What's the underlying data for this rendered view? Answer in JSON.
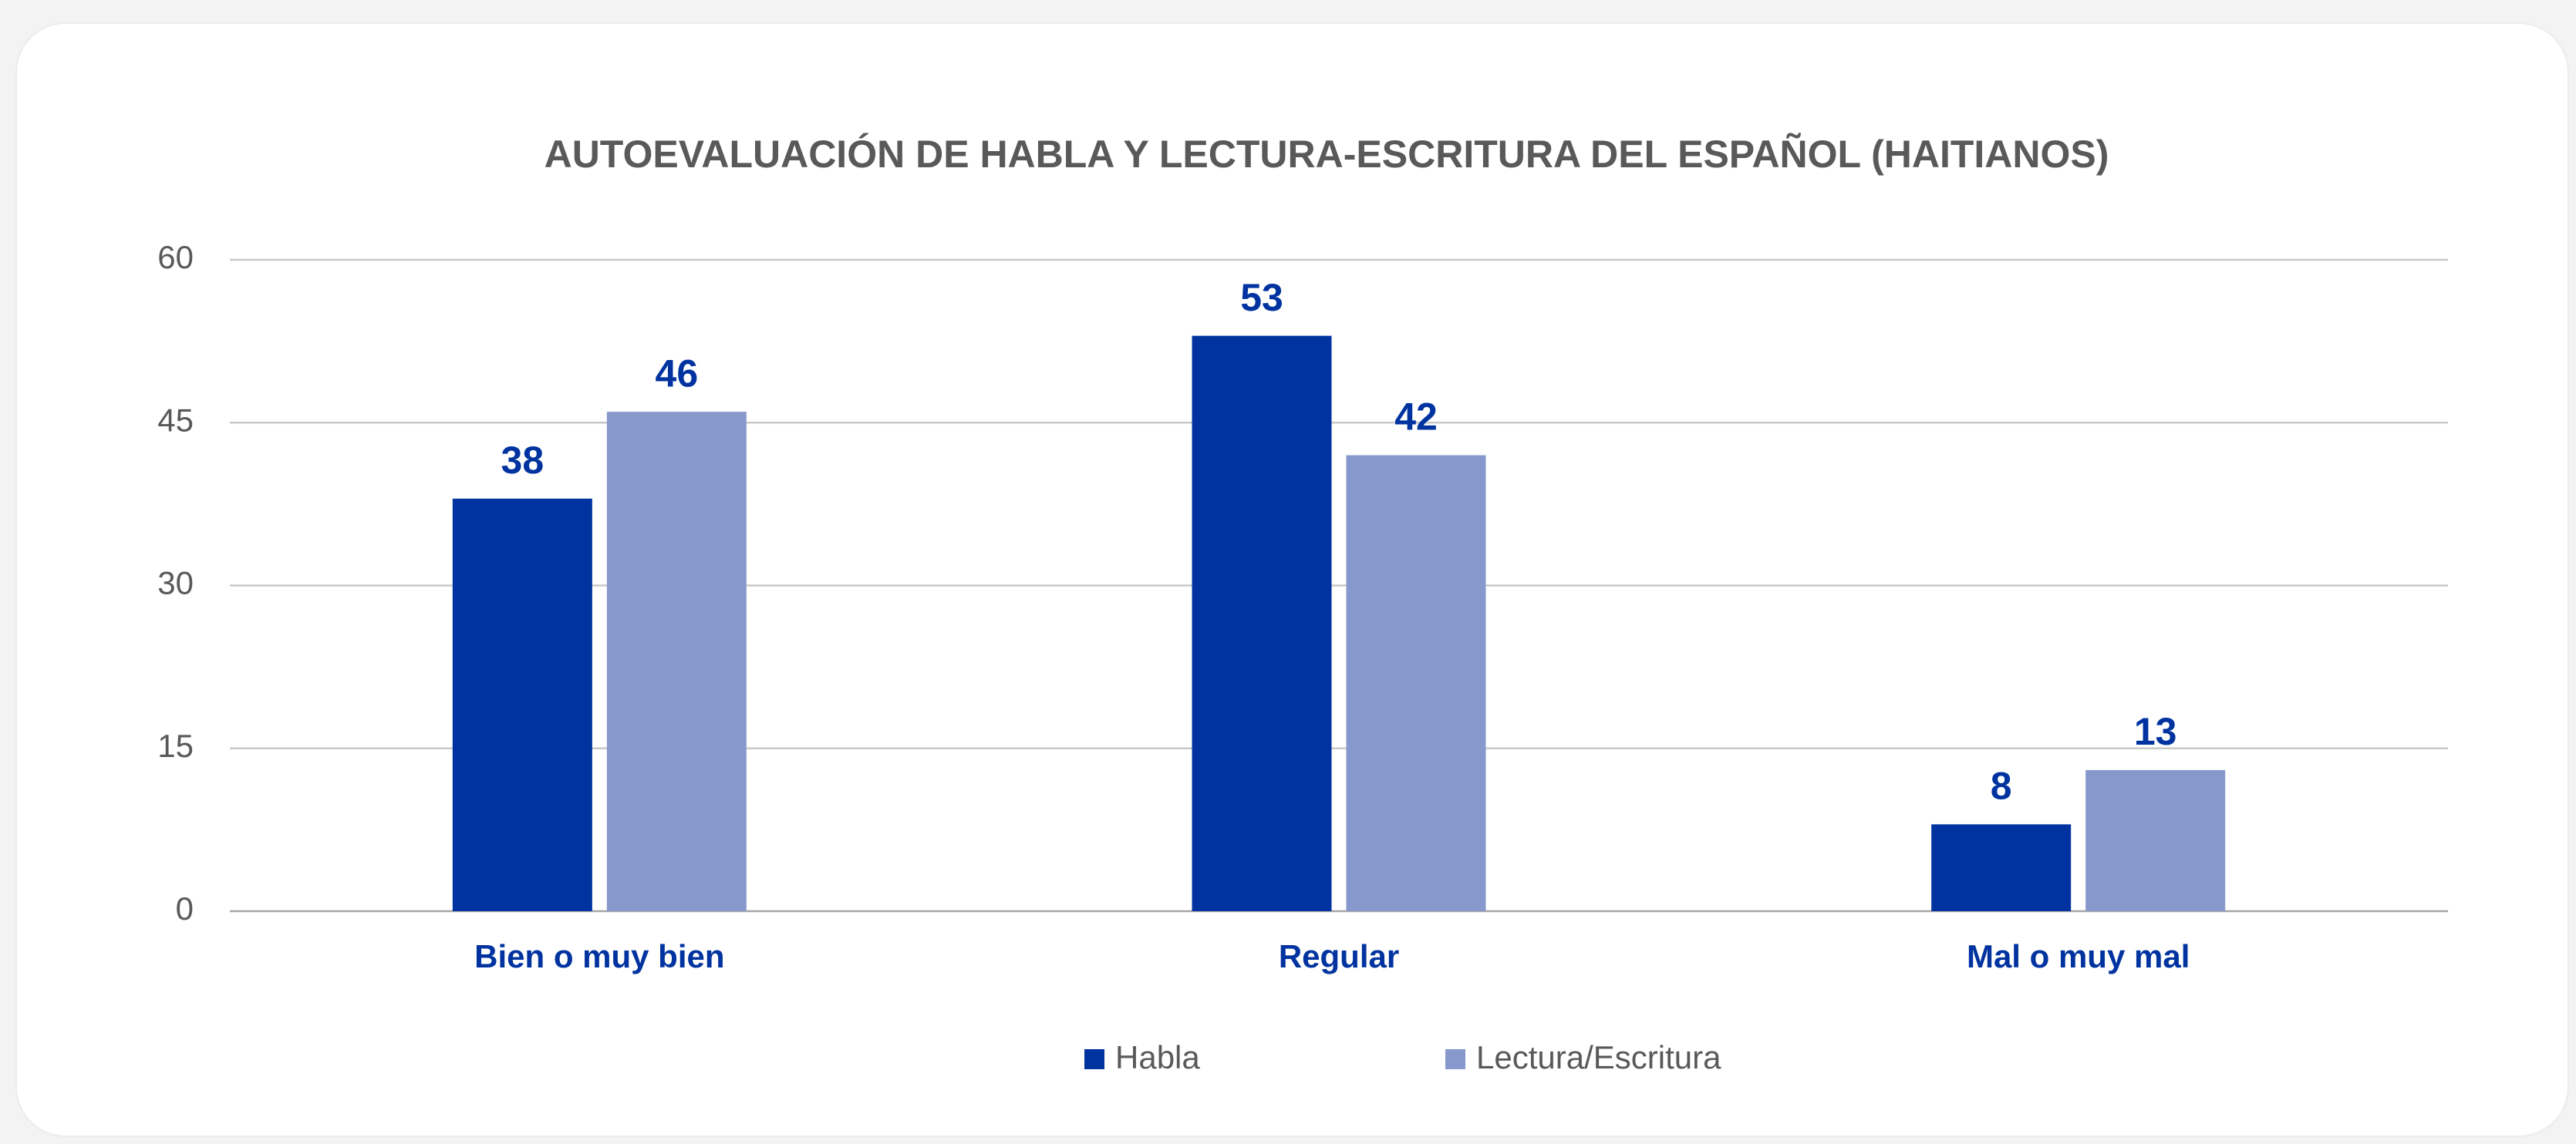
{
  "chart_data": {
    "type": "bar",
    "title": "AUTOEVALUACIÓN DE HABLA Y LECTURA-ESCRITURA DEL ESPAÑOL (HAITIANOS)",
    "categories": [
      "Bien o muy bien",
      "Regular",
      "Mal o muy mal"
    ],
    "series": [
      {
        "name": "Habla",
        "color": "#0033a0",
        "values": [
          38,
          53,
          8
        ]
      },
      {
        "name": "Lectura/Escritura",
        "color": "#8799cc",
        "values": [
          46,
          42,
          13
        ]
      }
    ],
    "ylim": [
      0,
      60
    ],
    "yticks": [
      0,
      15,
      30,
      45,
      60
    ],
    "grid": true,
    "legend": "bottom"
  }
}
